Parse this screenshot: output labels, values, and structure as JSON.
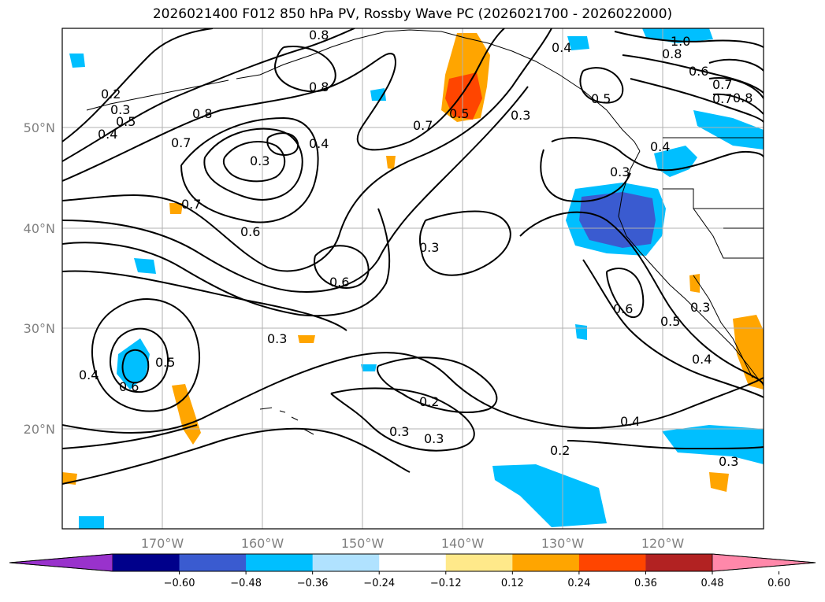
{
  "title": "2026021400 F012 850 hPa PV, Rossby Wave PC (2026021700 - 2026022000)",
  "lat_labels": [
    "50°N",
    "40°N",
    "30°N",
    "20°N"
  ],
  "lon_labels": [
    "170°W",
    "160°W",
    "150°W",
    "140°W",
    "130°W",
    "120°W"
  ],
  "contour_labels": [
    "1.0",
    "0.8",
    "0.8",
    "0.4",
    "0.8",
    "0.7",
    "0.6",
    "0.5",
    "0.7",
    "0.8",
    "0.5",
    "0.7",
    "0.3",
    "0.4",
    "0.2",
    "0.3",
    "0.5",
    "0.4",
    "0.7",
    "0.8",
    "0.3",
    "0.4",
    "0.3",
    "0.7",
    "0.6",
    "0.3",
    "0.6",
    "0.6",
    "0.5",
    "0.3",
    "0.4",
    "0.3",
    "0.4",
    "0.6",
    "0.5",
    "0.2",
    "0.3",
    "0.3",
    "0.4",
    "0.2",
    "0.3"
  ],
  "colorbar": {
    "ticks": [
      "−0.60",
      "−0.48",
      "−0.36",
      "−0.24",
      "−0.12",
      "0.12",
      "0.24",
      "0.36",
      "0.48",
      "0.60"
    ],
    "colors": [
      "#9932cc",
      "#00008b",
      "#3a5bd0",
      "#00bfff",
      "#b0e2ff",
      "#ffffff",
      "#ffe98a",
      "#ffa500",
      "#ff4500",
      "#b22222",
      "#ff88aa"
    ]
  },
  "colors": {
    "neg_strong": "#3a5bd0",
    "neg_mid": "#00bfff",
    "neg_weak": "#b0e2ff",
    "pos_weak": "#ffe98a",
    "pos_mid": "#ffa500",
    "pos_strong": "#ff4500"
  }
}
